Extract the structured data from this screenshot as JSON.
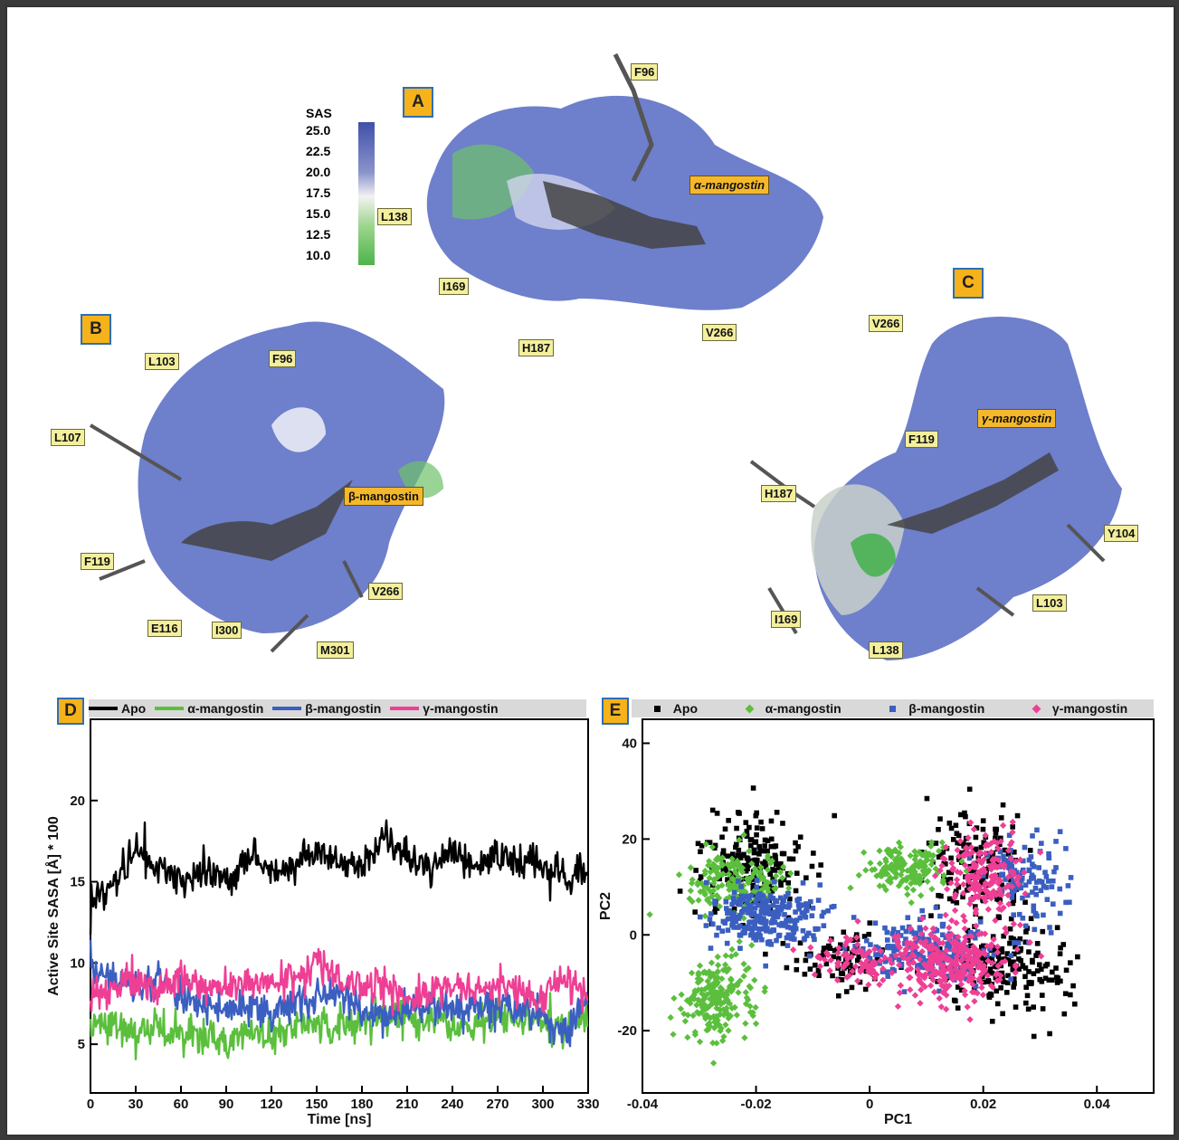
{
  "panels": {
    "a": "A",
    "b": "B",
    "c": "C",
    "d": "D",
    "e": "E"
  },
  "sas_scale": {
    "title": "SAS",
    "ticks": [
      "25.0",
      "22.5",
      "20.0",
      "17.5",
      "15.0",
      "12.5",
      "10.0"
    ],
    "colors": [
      "#3f51a8",
      "#f2f2f2",
      "#4db34a"
    ]
  },
  "structure_A": {
    "ligand": "α-mangostin",
    "residues": [
      "F96",
      "L138",
      "I169",
      "H187",
      "V266"
    ]
  },
  "structure_B": {
    "ligand": "β-mangostin",
    "residues": [
      "L103",
      "F96",
      "L107",
      "F119",
      "E116",
      "I300",
      "M301",
      "V266"
    ]
  },
  "structure_C": {
    "ligand": "γ-mangostin",
    "residues": [
      "V266",
      "F119",
      "H187",
      "Y104",
      "I169",
      "L103",
      "L138"
    ]
  },
  "chart_data": [
    {
      "type": "line",
      "panel": "D",
      "xlabel": "Time [ns]",
      "ylabel": "Active Site SASA [Å] * 100",
      "xlim": [
        0,
        330
      ],
      "ylim": [
        2,
        25
      ],
      "xticks": [
        0,
        30,
        60,
        90,
        120,
        150,
        180,
        210,
        240,
        270,
        300,
        330
      ],
      "yticks": [
        5,
        10,
        15,
        20
      ],
      "legend_position": "top",
      "series": [
        {
          "name": "Apo",
          "color": "#000000",
          "x": [
            0,
            15,
            30,
            45,
            60,
            75,
            90,
            105,
            120,
            135,
            150,
            165,
            180,
            195,
            210,
            225,
            240,
            255,
            270,
            285,
            300,
            315,
            330
          ],
          "values": [
            14.0,
            14.8,
            17.0,
            16.0,
            15.0,
            15.5,
            15.0,
            16.5,
            15.5,
            16.0,
            17.0,
            16.2,
            16.0,
            18.0,
            16.5,
            16.0,
            16.8,
            16.0,
            16.5,
            16.2,
            16.0,
            15.5,
            15.5
          ]
        },
        {
          "name": "α-mangostin",
          "color": "#5bbf3d",
          "x": [
            0,
            15,
            30,
            45,
            60,
            75,
            90,
            105,
            120,
            135,
            150,
            165,
            180,
            195,
            210,
            225,
            240,
            255,
            270,
            285,
            300,
            315,
            330
          ],
          "values": [
            6.0,
            6.5,
            5.5,
            6.0,
            5.5,
            5.5,
            5.0,
            6.0,
            5.5,
            6.0,
            6.2,
            6.0,
            6.5,
            6.8,
            6.8,
            6.5,
            6.2,
            6.0,
            6.8,
            6.5,
            6.5,
            6.0,
            7.0
          ]
        },
        {
          "name": "β-mangostin",
          "color": "#3b5fc0",
          "x": [
            0,
            15,
            30,
            45,
            60,
            75,
            90,
            105,
            120,
            135,
            150,
            165,
            180,
            195,
            210,
            225,
            240,
            255,
            270,
            285,
            300,
            315,
            330
          ],
          "values": [
            9.5,
            9.0,
            8.5,
            9.0,
            8.0,
            7.5,
            7.0,
            7.5,
            7.0,
            7.5,
            8.0,
            8.5,
            7.0,
            6.8,
            7.0,
            7.5,
            7.2,
            7.2,
            7.5,
            7.0,
            7.0,
            5.5,
            8.0
          ]
        },
        {
          "name": "γ-mangostin",
          "color": "#ee3f95",
          "x": [
            0,
            15,
            30,
            45,
            60,
            75,
            90,
            105,
            120,
            135,
            150,
            165,
            180,
            195,
            210,
            225,
            240,
            255,
            270,
            285,
            300,
            315,
            330
          ],
          "values": [
            8.0,
            8.5,
            8.8,
            8.5,
            9.0,
            8.5,
            8.8,
            8.5,
            9.0,
            8.8,
            10.2,
            9.0,
            8.5,
            8.5,
            8.0,
            8.2,
            8.5,
            8.2,
            8.5,
            8.0,
            8.0,
            9.0,
            8.0
          ]
        }
      ]
    },
    {
      "type": "scatter",
      "panel": "E",
      "xlabel": "PC1",
      "ylabel": "PC2",
      "xlim": [
        -0.04,
        0.05
      ],
      "ylim": [
        -33,
        45
      ],
      "xticks": [
        -0.04,
        -0.02,
        0,
        0.02,
        0.04
      ],
      "yticks": [
        -20,
        0,
        20,
        40
      ],
      "legend_position": "top",
      "series": [
        {
          "name": "Apo",
          "color": "#000000",
          "marker": "square",
          "clusters": [
            {
              "cx": -0.02,
              "cy": 14,
              "sx": 0.008,
              "sy": 9,
              "n": 200
            },
            {
              "cx": 0.018,
              "cy": 14,
              "sx": 0.008,
              "sy": 10,
              "n": 150
            },
            {
              "cx": 0.025,
              "cy": -7,
              "sx": 0.01,
              "sy": 7,
              "n": 180
            },
            {
              "cx": -0.005,
              "cy": -5,
              "sx": 0.007,
              "sy": 5,
              "n": 80
            }
          ]
        },
        {
          "name": "α-mangostin",
          "color": "#5bbf3d",
          "marker": "diamond",
          "clusters": [
            {
              "cx": -0.027,
              "cy": -13,
              "sx": 0.005,
              "sy": 7,
              "n": 220
            },
            {
              "cx": -0.024,
              "cy": 11,
              "sx": 0.007,
              "sy": 5,
              "n": 180
            },
            {
              "cx": 0.006,
              "cy": 14,
              "sx": 0.006,
              "sy": 4,
              "n": 150
            }
          ]
        },
        {
          "name": "β-mangostin",
          "color": "#3b5fc0",
          "marker": "square",
          "clusters": [
            {
              "cx": -0.018,
              "cy": 4,
              "sx": 0.008,
              "sy": 5,
              "n": 250
            },
            {
              "cx": 0.01,
              "cy": -4,
              "sx": 0.01,
              "sy": 6,
              "n": 200
            },
            {
              "cx": 0.027,
              "cy": 12,
              "sx": 0.006,
              "sy": 9,
              "n": 120
            }
          ]
        },
        {
          "name": "γ-mangostin",
          "color": "#ee3f95",
          "marker": "diamond",
          "clusters": [
            {
              "cx": 0.014,
              "cy": -6,
              "sx": 0.008,
              "sy": 6,
              "n": 300
            },
            {
              "cx": 0.02,
              "cy": 13,
              "sx": 0.006,
              "sy": 7,
              "n": 180
            },
            {
              "cx": -0.002,
              "cy": -5,
              "sx": 0.006,
              "sy": 4,
              "n": 80
            }
          ]
        }
      ]
    }
  ]
}
